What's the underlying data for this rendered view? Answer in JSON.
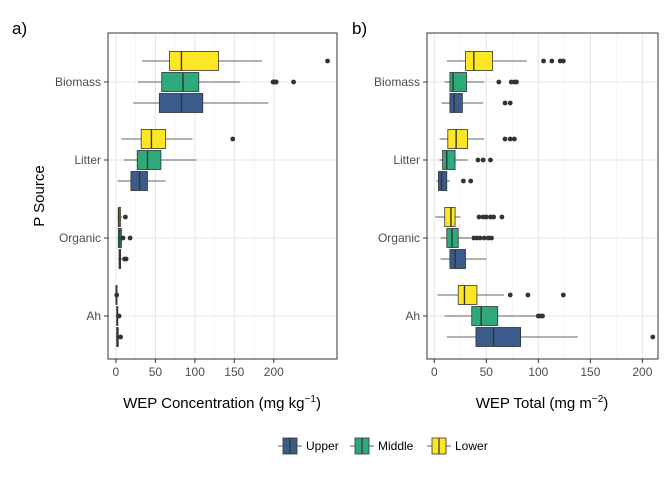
{
  "chart_data": [
    {
      "type": "boxplot",
      "tag": "a)",
      "xlabel": "WEP Concentration (mg kg",
      "xlabel_sup": "−1",
      "xlabel_tail": ")",
      "ylabel": "P Source",
      "xlim": [
        -10,
        280
      ],
      "xticks": [
        0,
        50,
        100,
        150,
        200
      ],
      "categories": [
        "Ah",
        "Organic",
        "Litter",
        "Biomass"
      ],
      "groups": [
        {
          "name": "Upper",
          "color": "#3b5b8c",
          "boxes": [
            {
              "category": "Ah",
              "whisker_low": 0,
              "q1": 1,
              "median": 2,
              "q3": 3,
              "whisker_high": 4,
              "outliers": [
                6
              ]
            },
            {
              "category": "Organic",
              "whisker_low": 3,
              "q1": 4,
              "median": 5,
              "q3": 6,
              "whisker_high": 8,
              "outliers": [
                11,
                13
              ]
            },
            {
              "category": "Litter",
              "whisker_low": 2,
              "q1": 19,
              "median": 30,
              "q3": 40,
              "whisker_high": 63,
              "outliers": []
            },
            {
              "category": "Biomass",
              "whisker_low": 22,
              "q1": 55,
              "median": 83,
              "q3": 110,
              "whisker_high": 193,
              "outliers": []
            }
          ]
        },
        {
          "name": "Middle",
          "color": "#2eaa7a",
          "boxes": [
            {
              "category": "Ah",
              "whisker_low": 0,
              "q1": 1,
              "median": 2,
              "q3": 2,
              "whisker_high": 3,
              "outliers": [
                4
              ]
            },
            {
              "category": "Organic",
              "whisker_low": 2,
              "q1": 3,
              "median": 5,
              "q3": 7,
              "whisker_high": 11,
              "outliers": [
                9,
                18
              ]
            },
            {
              "category": "Litter",
              "whisker_low": 10,
              "q1": 27,
              "median": 40,
              "q3": 57,
              "whisker_high": 102,
              "outliers": []
            },
            {
              "category": "Biomass",
              "whisker_low": 28,
              "q1": 58,
              "median": 85,
              "q3": 105,
              "whisker_high": 157,
              "outliers": [
                199,
                200,
                201,
                202,
                203,
                225
              ]
            }
          ]
        },
        {
          "name": "Lower",
          "color": "#fde725",
          "boxes": [
            {
              "category": "Ah",
              "whisker_low": -1,
              "q1": 0,
              "median": 1,
              "q3": 1,
              "whisker_high": 3,
              "outliers": [
                1
              ]
            },
            {
              "category": "Organic",
              "whisker_low": 2,
              "q1": 3,
              "median": 4,
              "q3": 6,
              "whisker_high": 8,
              "outliers": [
                12
              ]
            },
            {
              "category": "Litter",
              "whisker_low": 7,
              "q1": 32,
              "median": 45,
              "q3": 63,
              "whisker_high": 97,
              "outliers": [
                148
              ]
            },
            {
              "category": "Biomass",
              "whisker_low": 33,
              "q1": 68,
              "median": 83,
              "q3": 130,
              "whisker_high": 185,
              "outliers": [
                268
              ]
            }
          ]
        }
      ]
    },
    {
      "type": "boxplot",
      "tag": "b)",
      "xlabel": "WEP Total (mg m",
      "xlabel_sup": "−2",
      "xlabel_tail": ")",
      "ylabel": "",
      "xlim": [
        -7,
        215
      ],
      "xticks": [
        0,
        50,
        100,
        150,
        200
      ],
      "categories": [
        "Ah",
        "Organic",
        "Litter",
        "Biomass"
      ],
      "groups": [
        {
          "name": "Upper",
          "color": "#3b5b8c",
          "boxes": [
            {
              "category": "Ah",
              "whisker_low": 12,
              "q1": 40,
              "median": 57,
              "q3": 83,
              "whisker_high": 138,
              "outliers": [
                210
              ]
            },
            {
              "category": "Organic",
              "whisker_low": 6,
              "q1": 15,
              "median": 20,
              "q3": 30,
              "whisker_high": 50,
              "outliers": []
            },
            {
              "category": "Litter",
              "whisker_low": 2,
              "q1": 4,
              "median": 7,
              "q3": 12,
              "whisker_high": 15,
              "outliers": [
                28,
                35
              ]
            },
            {
              "category": "Biomass",
              "whisker_low": 7,
              "q1": 15,
              "median": 19,
              "q3": 27,
              "whisker_high": 47,
              "outliers": [
                68,
                73
              ]
            }
          ]
        },
        {
          "name": "Middle",
          "color": "#2eaa7a",
          "boxes": [
            {
              "category": "Ah",
              "whisker_low": 10,
              "q1": 36,
              "median": 45,
              "q3": 61,
              "whisker_high": 98,
              "outliers": [
                100,
                102,
                104
              ]
            },
            {
              "category": "Organic",
              "whisker_low": 6,
              "q1": 12,
              "median": 17,
              "q3": 23,
              "whisker_high": 35,
              "outliers": [
                38,
                41,
                44,
                48,
                52,
                55
              ]
            },
            {
              "category": "Litter",
              "whisker_low": 5,
              "q1": 8,
              "median": 12,
              "q3": 20,
              "whisker_high": 32,
              "outliers": [
                42,
                47,
                54
              ]
            },
            {
              "category": "Biomass",
              "whisker_low": 10,
              "q1": 15,
              "median": 18,
              "q3": 31,
              "whisker_high": 48,
              "outliers": [
                62,
                74,
                77,
                79
              ]
            }
          ]
        },
        {
          "name": "Lower",
          "color": "#fde725",
          "boxes": [
            {
              "category": "Ah",
              "whisker_low": 3,
              "q1": 23,
              "median": 29,
              "q3": 41,
              "whisker_high": 67,
              "outliers": [
                73,
                90,
                124
              ]
            },
            {
              "category": "Organic",
              "whisker_low": 1,
              "q1": 10,
              "median": 16,
              "q3": 20,
              "whisker_high": 25,
              "outliers": [
                43,
                47,
                50,
                54,
                57,
                65
              ]
            },
            {
              "category": "Litter",
              "whisker_low": 5,
              "q1": 13,
              "median": 21,
              "q3": 32,
              "whisker_high": 48,
              "outliers": [
                68,
                73,
                77
              ]
            },
            {
              "category": "Biomass",
              "whisker_low": 12,
              "q1": 30,
              "median": 38,
              "q3": 56,
              "whisker_high": 89,
              "outliers": [
                105,
                113,
                121,
                124
              ]
            }
          ]
        }
      ]
    }
  ],
  "legend": {
    "items": [
      {
        "label": "Upper",
        "color": "#3b5b8c"
      },
      {
        "label": "Middle",
        "color": "#2eaa7a"
      },
      {
        "label": "Lower",
        "color": "#fde725"
      }
    ]
  }
}
